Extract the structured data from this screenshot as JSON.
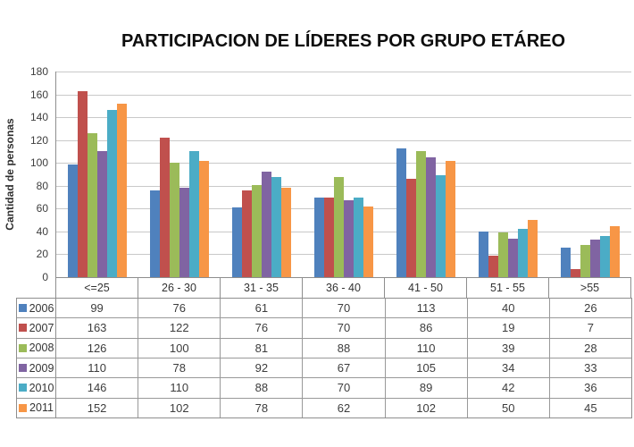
{
  "chart_data": {
    "type": "bar",
    "title": "PARTICIPACION DE LÍDERES POR GRUPO ETÁREO",
    "xlabel": "",
    "ylabel": "Cantidad de personas",
    "ylim": [
      0,
      180
    ],
    "ytick_step": 20,
    "yticks": [
      0,
      20,
      40,
      60,
      80,
      100,
      120,
      140,
      160,
      180
    ],
    "grid": true,
    "legend_position": "table-left",
    "categories": [
      "<=25",
      "26 - 30",
      "31 - 35",
      "36 - 40",
      "41 - 50",
      "51 - 55",
      ">55"
    ],
    "series": [
      {
        "name": "2006",
        "color": "#4F81BD",
        "values": [
          99,
          76,
          61,
          70,
          113,
          40,
          26
        ]
      },
      {
        "name": "2007",
        "color": "#C0504D",
        "values": [
          163,
          122,
          76,
          70,
          86,
          19,
          7
        ]
      },
      {
        "name": "2008",
        "color": "#9BBB59",
        "values": [
          126,
          100,
          81,
          88,
          110,
          39,
          28
        ]
      },
      {
        "name": "2009",
        "color": "#8064A2",
        "values": [
          110,
          78,
          92,
          67,
          105,
          34,
          33
        ]
      },
      {
        "name": "2010",
        "color": "#4BACC6",
        "values": [
          146,
          110,
          88,
          70,
          89,
          42,
          36
        ]
      },
      {
        "name": "2011",
        "color": "#F79646",
        "values": [
          152,
          102,
          78,
          62,
          102,
          50,
          45
        ]
      }
    ],
    "colors": {
      "gridline": "#c9c9c9",
      "axis": "#8e8e8e",
      "table_border": "#999999"
    }
  }
}
